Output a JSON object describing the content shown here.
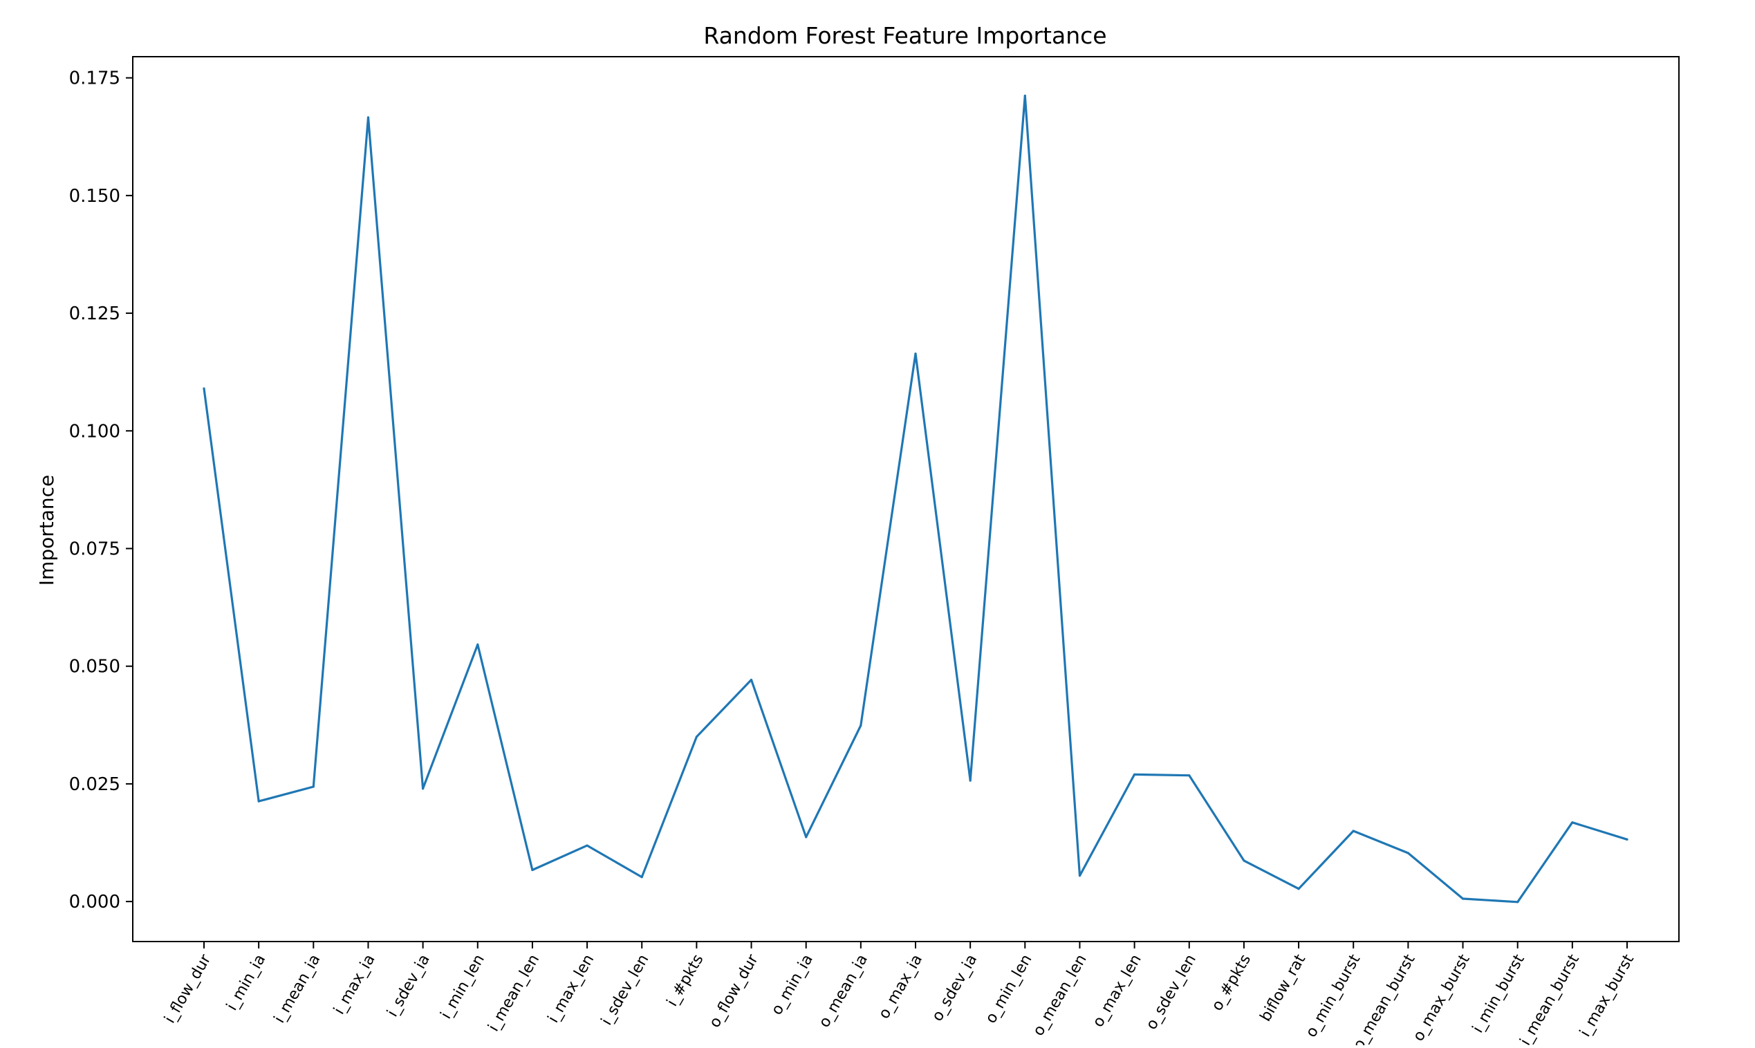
{
  "chart_data": {
    "type": "line",
    "title": "Random Forest Feature Importance",
    "xlabel": "",
    "ylabel": "Importance",
    "ylim": [
      -0.0085,
      0.1795
    ],
    "yticks": [
      0.0,
      0.025,
      0.05,
      0.075,
      0.1,
      0.125,
      0.15,
      0.175
    ],
    "ytick_labels": [
      "0.000",
      "0.025",
      "0.050",
      "0.075",
      "0.100",
      "0.125",
      "0.150",
      "0.175"
    ],
    "grid": false,
    "legend": "none",
    "categories": [
      "i_flow_dur",
      "i_min_ia",
      "i_mean_ia",
      "i_max_ia",
      "i_sdev_ia",
      "i_min_len",
      "i_mean_len",
      "i_max_len",
      "i_sdev_len",
      "i_#pkts",
      "o_flow_dur",
      "o_min_ia",
      "o_mean_ia",
      "o_max_ia",
      "o_sdev_ia",
      "o_min_len",
      "o_mean_len",
      "o_max_len",
      "o_sdev_len",
      "o_#pkts",
      "biflow_rat",
      "o_min_burst",
      "o_mean_burst",
      "o_max_burst",
      "i_min_burst",
      "i_mean_burst",
      "i_max_burst"
    ],
    "series": [
      {
        "color": "#1f77b4",
        "values": [
          0.109,
          0.0213,
          0.0244,
          0.1666,
          0.024,
          0.0546,
          0.0067,
          0.0119,
          0.0052,
          0.035,
          0.0471,
          0.0137,
          0.0374,
          0.1164,
          0.0257,
          0.1712,
          0.0055,
          0.027,
          0.0268,
          0.0087,
          0.0027,
          0.015,
          0.0103,
          0.0006,
          -0.0001,
          0.0168,
          0.0132
        ]
      }
    ]
  }
}
